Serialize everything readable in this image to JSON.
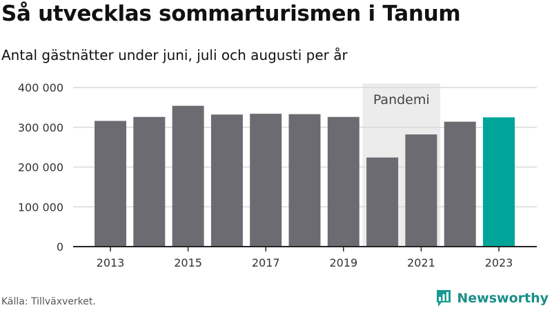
{
  "title": "Så utvecklas sommarturismen i Tanum",
  "subtitle": "Antal gästnätter under juni, juli och augusti per år",
  "source": "Källa: Tillväxverket.",
  "brand": {
    "name": "Newsworthy",
    "icon": "newsworthy-logo-icon",
    "color": "#1a9b93"
  },
  "colors": {
    "bar": "#6d6b72",
    "highlight": "#00a59a",
    "band": "#ececec",
    "grid": "#d9d9d9",
    "axis": "#222222"
  },
  "chart_data": {
    "type": "bar",
    "categories": [
      "2013",
      "2014",
      "2015",
      "2016",
      "2017",
      "2018",
      "2019",
      "2020",
      "2021",
      "2022",
      "2023"
    ],
    "values": [
      316000,
      326000,
      354000,
      332000,
      334000,
      333000,
      326000,
      224000,
      282000,
      314000,
      325000
    ],
    "highlight": "2023",
    "x_tick_labels": [
      "2013",
      "2015",
      "2017",
      "2019",
      "2021",
      "2023"
    ],
    "y_ticks": [
      0,
      100000,
      200000,
      300000,
      400000
    ],
    "y_tick_labels": [
      "0",
      "100 000",
      "200 000",
      "300 000",
      "400 000"
    ],
    "ylim": [
      0,
      400000
    ],
    "xlabel": "",
    "ylabel": "",
    "grid": true,
    "annotations": [
      {
        "label": "Pandemi",
        "from": "2020",
        "to": "2021"
      }
    ]
  }
}
